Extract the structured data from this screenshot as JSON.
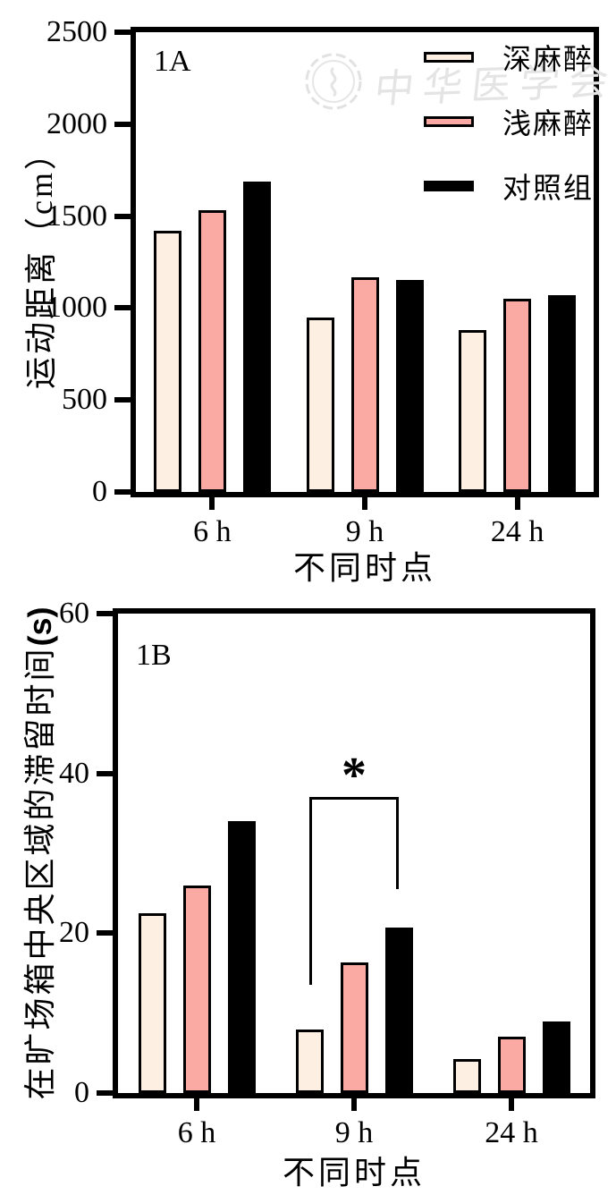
{
  "watermark": {
    "text": "中华医学会",
    "color": "#e4e4e4"
  },
  "colors": {
    "deep": "#FDF0E2",
    "light": "#FBA9A3",
    "control": "#000000",
    "axis": "#000000"
  },
  "chart_data": [
    {
      "type": "bar",
      "panel_label": "1A",
      "ylabel": "运动距离（cm）",
      "ylabel_bold_suffix": "",
      "xlabel": "不同时点",
      "ymax": 2500,
      "ylim": [
        0,
        2500
      ],
      "yticks": [
        0,
        500,
        1000,
        1500,
        2000,
        2500
      ],
      "categories": [
        "6 h",
        "9 h",
        "24 h"
      ],
      "series": [
        {
          "name": "深麻醉",
          "key": "deep",
          "values": [
            1420,
            950,
            880
          ]
        },
        {
          "name": "浅麻醉",
          "key": "light",
          "values": [
            1530,
            1165,
            1050
          ]
        },
        {
          "name": "对照组",
          "key": "control",
          "values": [
            1690,
            1155,
            1070
          ]
        }
      ],
      "legend_position": "top-right",
      "grid": false
    },
    {
      "type": "bar",
      "panel_label": "1B",
      "ylabel": "在旷场箱中央区域的滞留时间",
      "ylabel_bold_suffix": "(s)",
      "xlabel": "不同时点",
      "ymax": 60,
      "ylim": [
        0,
        60
      ],
      "yticks": [
        0,
        20,
        40,
        60
      ],
      "categories": [
        "6 h",
        "9 h",
        "24 h"
      ],
      "series": [
        {
          "name": "深麻醉",
          "key": "deep",
          "values": [
            22.5,
            8,
            4.2
          ]
        },
        {
          "name": "浅麻醉",
          "key": "light",
          "values": [
            26,
            16.3,
            7
          ]
        },
        {
          "name": "对照组",
          "key": "control",
          "values": [
            34,
            20.7,
            9
          ]
        }
      ],
      "significance": {
        "label": "*",
        "category_index": 1,
        "from_series_index": 0,
        "to_series_index": 2,
        "bracket_top_y": 37,
        "left_leg_bottom_y": 13.5,
        "right_leg_bottom_y": 25.5
      },
      "grid": false
    }
  ]
}
